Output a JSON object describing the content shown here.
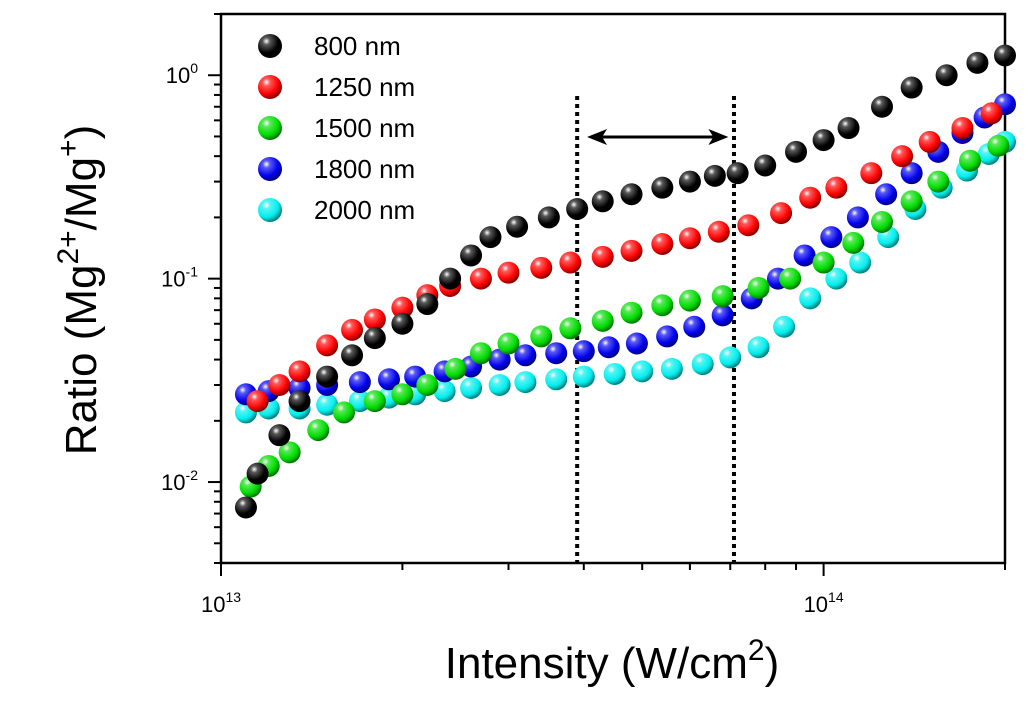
{
  "chart_data": {
    "type": "scatter",
    "xscale": "log",
    "yscale": "log",
    "xlim": [
      10000000000000.0,
      200000000000000.0
    ],
    "ylim": [
      0.004,
      2
    ],
    "xlabel": {
      "main": "Intensity (W/cm",
      "sup": "2",
      "end": ")"
    },
    "ylabel": {
      "main": "Ratio (Mg",
      "sup1": "2+",
      "mid": "/Mg",
      "sup2": "+",
      "end": ")"
    },
    "x_ticks": [
      {
        "base": "10",
        "exp": "13",
        "value": 10000000000000.0
      },
      {
        "base": "10",
        "exp": "14",
        "value": 100000000000000.0
      }
    ],
    "y_ticks": [
      {
        "base": "10",
        "exp": "0",
        "value": 1
      },
      {
        "base": "10",
        "exp": "-1",
        "value": 0.1
      },
      {
        "base": "10",
        "exp": "-2",
        "value": 0.01
      }
    ],
    "legend_position": "top-left",
    "annotations": {
      "vertical_dotted_lines": [
        39000000000000.0,
        71000000000000.0
      ],
      "double_arrow": {
        "x_from": 40500000000000.0,
        "x_to": 69500000000000.0,
        "y": 0.5
      }
    },
    "series": [
      {
        "name": "800 nm",
        "color": "#000000",
        "x": [
          11000000000000.0,
          11500000000000.0,
          12500000000000.0,
          13500000000000.0,
          15000000000000.0,
          16500000000000.0,
          18000000000000.0,
          20000000000000.0,
          22000000000000.0,
          24000000000000.0,
          26000000000000.0,
          28000000000000.0,
          31000000000000.0,
          35000000000000.0,
          39000000000000.0,
          43000000000000.0,
          48000000000000.0,
          54000000000000.0,
          60000000000000.0,
          66000000000000.0,
          72000000000000.0,
          80000000000000.0,
          90000000000000.0,
          100000000000000.0,
          110000000000000.0,
          125000000000000.0,
          140000000000000.0,
          160000000000000.0,
          180000000000000.0,
          200000000000000.0
        ],
        "y": [
          0.0075,
          0.011,
          0.017,
          0.025,
          0.033,
          0.042,
          0.051,
          0.06,
          0.075,
          0.1,
          0.13,
          0.16,
          0.18,
          0.2,
          0.22,
          0.24,
          0.26,
          0.28,
          0.3,
          0.32,
          0.33,
          0.36,
          0.42,
          0.48,
          0.55,
          0.7,
          0.87,
          1.0,
          1.15,
          1.25
        ]
      },
      {
        "name": "1250 nm",
        "color": "#ff0000",
        "x": [
          11500000000000.0,
          12500000000000.0,
          13500000000000.0,
          15000000000000.0,
          16500000000000.0,
          18000000000000.0,
          20000000000000.0,
          22000000000000.0,
          24000000000000.0,
          27000000000000.0,
          30000000000000.0,
          34000000000000.0,
          38000000000000.0,
          43000000000000.0,
          48000000000000.0,
          54000000000000.0,
          60000000000000.0,
          67000000000000.0,
          75000000000000.0,
          85000000000000.0,
          95000000000000.0,
          105000000000000.0,
          120000000000000.0,
          135000000000000.0,
          150000000000000.0,
          170000000000000.0,
          190000000000000.0
        ],
        "y": [
          0.025,
          0.03,
          0.035,
          0.047,
          0.056,
          0.063,
          0.072,
          0.083,
          0.092,
          0.1,
          0.107,
          0.113,
          0.12,
          0.128,
          0.137,
          0.148,
          0.158,
          0.17,
          0.183,
          0.21,
          0.25,
          0.28,
          0.33,
          0.4,
          0.47,
          0.55,
          0.65
        ]
      },
      {
        "name": "1500 nm",
        "color": "#00dd00",
        "x": [
          11200000000000.0,
          12000000000000.0,
          13000000000000.0,
          14500000000000.0,
          16000000000000.0,
          18000000000000.0,
          20000000000000.0,
          22000000000000.0,
          24500000000000.0,
          27000000000000.0,
          30000000000000.0,
          34000000000000.0,
          38000000000000.0,
          43000000000000.0,
          48000000000000.0,
          54000000000000.0,
          60000000000000.0,
          68000000000000.0,
          78000000000000.0,
          88000000000000.0,
          100000000000000.0,
          112000000000000.0,
          125000000000000.0,
          140000000000000.0,
          155000000000000.0,
          175000000000000.0,
          195000000000000.0
        ],
        "y": [
          0.0095,
          0.012,
          0.014,
          0.018,
          0.022,
          0.025,
          0.027,
          0.03,
          0.036,
          0.043,
          0.048,
          0.052,
          0.057,
          0.062,
          0.068,
          0.074,
          0.078,
          0.082,
          0.09,
          0.1,
          0.12,
          0.15,
          0.19,
          0.24,
          0.3,
          0.38,
          0.45
        ]
      },
      {
        "name": "1800 nm",
        "color": "#0000ee",
        "x": [
          11000000000000.0,
          12000000000000.0,
          13500000000000.0,
          15000000000000.0,
          17000000000000.0,
          19000000000000.0,
          21000000000000.0,
          23500000000000.0,
          26000000000000.0,
          29000000000000.0,
          32000000000000.0,
          36000000000000.0,
          40000000000000.0,
          44000000000000.0,
          49000000000000.0,
          55000000000000.0,
          61000000000000.0,
          68000000000000.0,
          76000000000000.0,
          84000000000000.0,
          93000000000000.0,
          103000000000000.0,
          114000000000000.0,
          127000000000000.0,
          140000000000000.0,
          155000000000000.0,
          170000000000000.0,
          185000000000000.0,
          200000000000000.0
        ],
        "y": [
          0.027,
          0.028,
          0.029,
          0.03,
          0.031,
          0.032,
          0.033,
          0.035,
          0.037,
          0.04,
          0.042,
          0.043,
          0.044,
          0.046,
          0.048,
          0.052,
          0.058,
          0.066,
          0.08,
          0.1,
          0.13,
          0.16,
          0.2,
          0.26,
          0.33,
          0.42,
          0.52,
          0.62,
          0.72
        ]
      },
      {
        "name": "2000 nm",
        "color": "#00eeee",
        "x": [
          11000000000000.0,
          12000000000000.0,
          13500000000000.0,
          15000000000000.0,
          17000000000000.0,
          19000000000000.0,
          21000000000000.0,
          23500000000000.0,
          26000000000000.0,
          29000000000000.0,
          32000000000000.0,
          36000000000000.0,
          40000000000000.0,
          45000000000000.0,
          50000000000000.0,
          56000000000000.0,
          63000000000000.0,
          70000000000000.0,
          78000000000000.0,
          86000000000000.0,
          95000000000000.0,
          105000000000000.0,
          115000000000000.0,
          128000000000000.0,
          142000000000000.0,
          157000000000000.0,
          173000000000000.0,
          188000000000000.0,
          200000000000000.0
        ],
        "y": [
          0.022,
          0.023,
          0.023,
          0.024,
          0.025,
          0.026,
          0.027,
          0.028,
          0.029,
          0.03,
          0.031,
          0.032,
          0.033,
          0.034,
          0.035,
          0.036,
          0.038,
          0.041,
          0.046,
          0.058,
          0.08,
          0.1,
          0.12,
          0.16,
          0.22,
          0.28,
          0.34,
          0.41,
          0.47
        ]
      }
    ]
  }
}
